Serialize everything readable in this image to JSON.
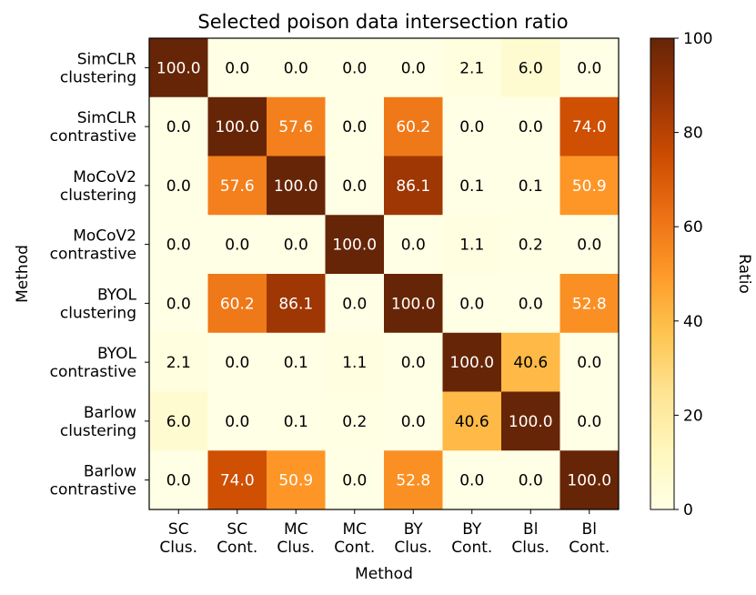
{
  "chart_data": {
    "type": "heatmap",
    "title": "Selected poison data intersection ratio",
    "xlabel": "Method",
    "ylabel": "Method",
    "x_categories": [
      [
        "SC",
        "Clus."
      ],
      [
        "SC",
        "Cont."
      ],
      [
        "MC",
        "Clus."
      ],
      [
        "MC",
        "Cont."
      ],
      [
        "BY",
        "Clus."
      ],
      [
        "BY",
        "Cont."
      ],
      [
        "Bl",
        "Clus."
      ],
      [
        "Bl",
        "Cont."
      ]
    ],
    "y_categories": [
      [
        "SimCLR",
        "clustering"
      ],
      [
        "SimCLR",
        "contrastive"
      ],
      [
        "MoCoV2",
        "clustering"
      ],
      [
        "MoCoV2",
        "contrastive"
      ],
      [
        "BYOL",
        "clustering"
      ],
      [
        "BYOL",
        "contrastive"
      ],
      [
        "Barlow",
        "clustering"
      ],
      [
        "Barlow",
        "contrastive"
      ]
    ],
    "values": [
      [
        100.0,
        0.0,
        0.0,
        0.0,
        0.0,
        2.1,
        6.0,
        0.0
      ],
      [
        0.0,
        100.0,
        57.6,
        0.0,
        60.2,
        0.0,
        0.0,
        74.0
      ],
      [
        0.0,
        57.6,
        100.0,
        0.0,
        86.1,
        0.1,
        0.1,
        50.9
      ],
      [
        0.0,
        0.0,
        0.0,
        100.0,
        0.0,
        1.1,
        0.2,
        0.0
      ],
      [
        0.0,
        60.2,
        86.1,
        0.0,
        100.0,
        0.0,
        0.0,
        52.8
      ],
      [
        2.1,
        0.0,
        0.1,
        1.1,
        0.0,
        100.0,
        40.6,
        0.0
      ],
      [
        6.0,
        0.0,
        0.1,
        0.2,
        0.0,
        40.6,
        100.0,
        0.0
      ],
      [
        0.0,
        74.0,
        50.9,
        0.0,
        52.8,
        0.0,
        0.0,
        100.0
      ]
    ],
    "value_format": "one-decimal",
    "colormap": "YlOrBr",
    "colormap_stops": [
      "#ffffe5",
      "#fff7bc",
      "#fee391",
      "#fec44f",
      "#fe9929",
      "#ec7014",
      "#cc4c02",
      "#993404",
      "#662506"
    ],
    "colorbar": {
      "label": "Ratio",
      "range": [
        0,
        100
      ],
      "ticks": [
        0,
        20,
        40,
        60,
        80,
        100
      ]
    }
  }
}
